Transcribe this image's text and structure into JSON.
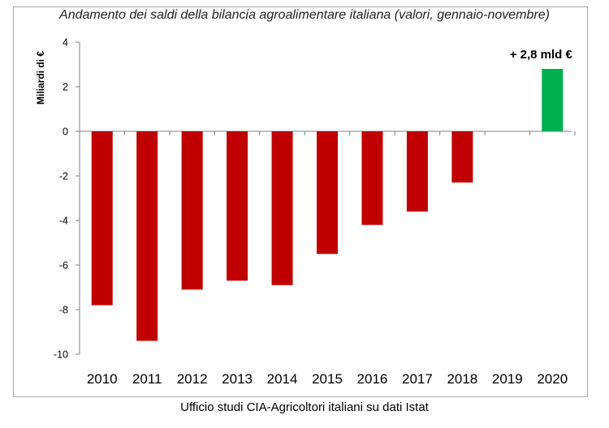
{
  "chart_data": {
    "type": "bar",
    "title": "Andamento dei saldi della bilancia agroalimentare italiana (valori, gennaio-novembre)",
    "ylabel": "Miliardi di €",
    "xlabel": "",
    "categories": [
      "2010",
      "2011",
      "2012",
      "2013",
      "2014",
      "2015",
      "2016",
      "2017",
      "2018",
      "2019",
      "2020"
    ],
    "values": [
      -7.8,
      -9.4,
      -7.1,
      -6.7,
      -6.9,
      -5.5,
      -4.2,
      -3.6,
      -2.3,
      null,
      2.8
    ],
    "ylim": [
      -10,
      4
    ],
    "yticks": [
      4,
      2,
      0,
      -2,
      -4,
      -6,
      -8,
      -10
    ],
    "grid": false,
    "annotations": [
      {
        "category": "2020",
        "text": "+ 2,8 mld €"
      }
    ],
    "source": "Ufficio studi CIA-Agricoltori italiani su dati Istat",
    "colors": {
      "negative": "#c00000",
      "positive": "#00b050",
      "axis": "#808080"
    }
  }
}
